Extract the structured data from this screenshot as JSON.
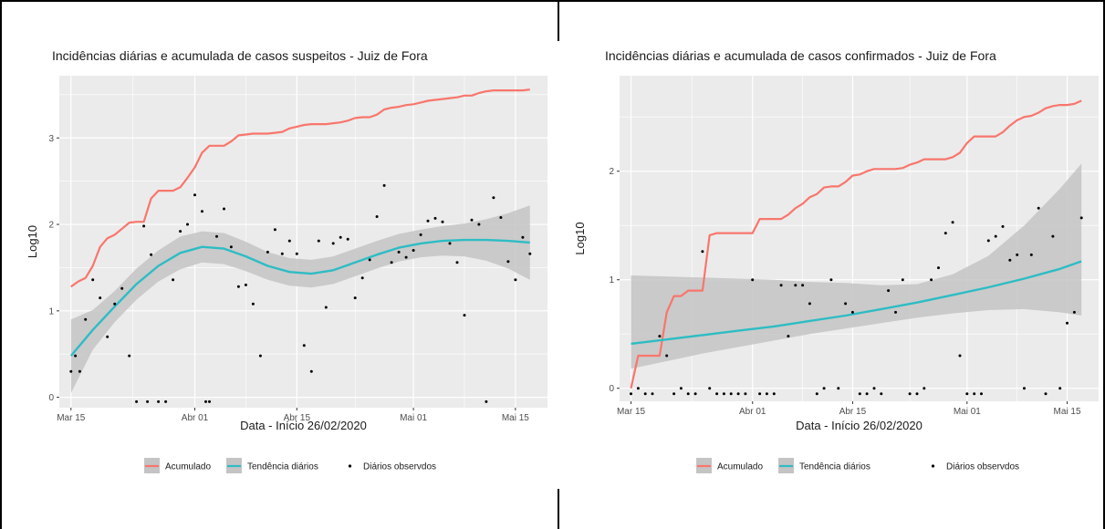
{
  "colors": {
    "panel_bg": "#ebebeb",
    "grid": "#ffffff",
    "accumulated": "#f8766d",
    "trend": "#2ebcc4",
    "ribbon": "#c4c4c4",
    "points": "#000000"
  },
  "chart_data": [
    {
      "type": "line",
      "title": "Incidências diárias e acumulada de casos suspeitos - Juiz de Fora",
      "xlabel": "Data - Início 26/02/2020",
      "ylabel": "Log10",
      "x_ticks": [
        {
          "day": 15,
          "label": "Mar 15"
        },
        {
          "day": 32,
          "label": "Abr 01"
        },
        {
          "day": 46,
          "label": "Abr 15"
        },
        {
          "day": 62,
          "label": "Mai 01"
        },
        {
          "day": 76,
          "label": "Mai 15"
        }
      ],
      "y_ticks": [
        0,
        1,
        2,
        3
      ],
      "xlim": [
        13.4,
        80.4
      ],
      "ylim": [
        -0.12,
        3.72
      ],
      "legend": [
        "Acumulado",
        "Tendência diários",
        "Diários observdos"
      ],
      "legend_position": "bottom",
      "series": [
        {
          "name": "Acumulado",
          "kind": "step",
          "x": [
            15,
            16,
            17,
            18,
            19,
            20,
            21,
            22,
            23,
            24,
            25,
            26,
            27,
            28,
            29,
            30,
            31,
            32,
            33,
            34,
            35,
            36,
            37,
            38,
            39,
            40,
            41,
            42,
            43,
            44,
            45,
            46,
            47,
            48,
            49,
            50,
            51,
            52,
            53,
            54,
            55,
            56,
            57,
            58,
            59,
            60,
            61,
            62,
            63,
            64,
            65,
            66,
            67,
            68,
            69,
            70,
            71,
            72,
            73,
            74,
            75,
            76,
            77,
            78
          ],
          "y": [
            1.28,
            1.34,
            1.38,
            1.52,
            1.74,
            1.84,
            1.88,
            1.95,
            2.02,
            2.03,
            2.03,
            2.3,
            2.39,
            2.39,
            2.39,
            2.43,
            2.54,
            2.66,
            2.83,
            2.91,
            2.91,
            2.91,
            2.96,
            3.03,
            3.04,
            3.05,
            3.05,
            3.05,
            3.06,
            3.07,
            3.11,
            3.13,
            3.15,
            3.16,
            3.16,
            3.16,
            3.17,
            3.18,
            3.2,
            3.23,
            3.24,
            3.24,
            3.27,
            3.33,
            3.35,
            3.36,
            3.38,
            3.39,
            3.41,
            3.43,
            3.44,
            3.45,
            3.46,
            3.47,
            3.49,
            3.49,
            3.52,
            3.54,
            3.55,
            3.55,
            3.55,
            3.55,
            3.55,
            3.56
          ]
        },
        {
          "name": "Tendência diários",
          "kind": "smooth",
          "x": [
            15,
            18,
            21,
            24,
            27,
            30,
            33,
            36,
            39,
            42,
            45,
            48,
            51,
            54,
            57,
            60,
            63,
            66,
            69,
            72,
            75,
            78
          ],
          "y": [
            0.48,
            0.78,
            1.05,
            1.31,
            1.52,
            1.67,
            1.74,
            1.72,
            1.63,
            1.52,
            1.45,
            1.43,
            1.47,
            1.56,
            1.65,
            1.73,
            1.78,
            1.81,
            1.82,
            1.82,
            1.81,
            1.79
          ],
          "lower": [
            0.05,
            0.55,
            0.87,
            1.13,
            1.34,
            1.48,
            1.56,
            1.54,
            1.46,
            1.36,
            1.29,
            1.27,
            1.31,
            1.4,
            1.49,
            1.57,
            1.62,
            1.64,
            1.63,
            1.58,
            1.49,
            1.36
          ],
          "upper": [
            0.9,
            1.01,
            1.23,
            1.49,
            1.7,
            1.86,
            1.92,
            1.9,
            1.8,
            1.68,
            1.61,
            1.59,
            1.63,
            1.72,
            1.81,
            1.89,
            1.94,
            1.98,
            2.01,
            2.06,
            2.13,
            2.22
          ]
        },
        {
          "name": "Diários observdos",
          "kind": "points",
          "x": [
            15,
            15.6,
            16.2,
            17,
            18,
            19,
            20,
            21,
            22,
            23,
            24,
            25,
            25.5,
            26,
            27,
            28,
            29,
            30,
            31,
            32,
            33,
            33.5,
            34,
            35,
            36,
            37,
            38,
            39,
            40,
            41,
            42,
            43,
            44,
            45,
            46,
            47,
            48,
            49,
            50,
            51,
            52,
            53,
            54,
            55,
            56,
            57,
            58,
            59,
            60,
            61,
            62,
            63,
            64,
            65,
            66,
            67,
            68,
            69,
            70,
            71,
            72,
            73,
            74,
            75,
            76,
            77,
            78
          ],
          "y": [
            0.3,
            0.48,
            0.3,
            0.9,
            1.36,
            1.15,
            0.7,
            1.08,
            1.26,
            0.48,
            -0.05,
            1.98,
            -0.05,
            1.65,
            -0.05,
            -0.05,
            1.36,
            1.92,
            2.0,
            2.34,
            2.15,
            -0.05,
            -0.05,
            1.86,
            2.18,
            1.74,
            1.28,
            1.3,
            1.08,
            0.48,
            1.68,
            1.94,
            1.66,
            1.81,
            1.66,
            0.6,
            0.3,
            1.81,
            1.04,
            1.78,
            1.85,
            1.83,
            1.15,
            1.38,
            1.59,
            2.09,
            2.45,
            1.56,
            1.68,
            1.62,
            1.7,
            1.88,
            2.04,
            2.07,
            2.03,
            1.78,
            1.56,
            0.95,
            2.05,
            2.0,
            -0.05,
            2.31,
            2.08,
            1.57,
            1.36,
            1.85,
            1.66
          ]
        }
      ]
    },
    {
      "type": "line",
      "title": "Incidências diárias e acumulada de casos confirmados - Juiz de Fora",
      "xlabel": "Data - Início 26/02/2020",
      "ylabel": "Log10",
      "x_ticks": [
        {
          "day": 15,
          "label": "Mar 15"
        },
        {
          "day": 32,
          "label": "Abr 01"
        },
        {
          "day": 46,
          "label": "Abr 15"
        },
        {
          "day": 62,
          "label": "Mai 01"
        },
        {
          "day": 76,
          "label": "Mai 15"
        }
      ],
      "y_ticks": [
        0,
        1,
        2
      ],
      "xlim": [
        13.4,
        80.4
      ],
      "ylim": [
        -0.12,
        2.88
      ],
      "legend": [
        "Acumulado",
        "Tendência diários",
        "Diários observdos"
      ],
      "legend_position": "bottom",
      "series": [
        {
          "name": "Acumulado",
          "kind": "step",
          "x": [
            15,
            16,
            17,
            18,
            19,
            20,
            21,
            22,
            23,
            24,
            25,
            26,
            27,
            28,
            29,
            30,
            31,
            32,
            33,
            34,
            35,
            36,
            37,
            38,
            39,
            40,
            41,
            42,
            43,
            44,
            45,
            46,
            47,
            48,
            49,
            50,
            51,
            52,
            53,
            54,
            55,
            56,
            57,
            58,
            59,
            60,
            61,
            62,
            63,
            64,
            65,
            66,
            67,
            68,
            69,
            70,
            71,
            72,
            73,
            74,
            75,
            76,
            77,
            78
          ],
          "y": [
            0.0,
            0.3,
            0.3,
            0.3,
            0.3,
            0.7,
            0.85,
            0.85,
            0.9,
            0.9,
            0.9,
            1.41,
            1.43,
            1.43,
            1.43,
            1.43,
            1.43,
            1.43,
            1.56,
            1.56,
            1.56,
            1.56,
            1.6,
            1.66,
            1.7,
            1.76,
            1.79,
            1.85,
            1.86,
            1.86,
            1.9,
            1.96,
            1.97,
            2.0,
            2.02,
            2.02,
            2.02,
            2.02,
            2.03,
            2.06,
            2.08,
            2.11,
            2.11,
            2.11,
            2.11,
            2.13,
            2.17,
            2.26,
            2.32,
            2.32,
            2.32,
            2.32,
            2.36,
            2.42,
            2.47,
            2.5,
            2.51,
            2.54,
            2.58,
            2.6,
            2.61,
            2.61,
            2.62,
            2.65
          ]
        },
        {
          "name": "Tendência diários",
          "kind": "smooth",
          "x": [
            15,
            20,
            25,
            30,
            35,
            40,
            45,
            50,
            55,
            60,
            65,
            70,
            75,
            78
          ],
          "y": [
            0.41,
            0.45,
            0.49,
            0.53,
            0.57,
            0.62,
            0.67,
            0.73,
            0.79,
            0.86,
            0.93,
            1.01,
            1.1,
            1.17
          ],
          "lower": [
            0.18,
            0.25,
            0.32,
            0.38,
            0.44,
            0.5,
            0.55,
            0.6,
            0.65,
            0.69,
            0.72,
            0.73,
            0.7,
            0.67
          ],
          "upper": [
            1.04,
            1.03,
            1.02,
            1.01,
            1.0,
            0.98,
            0.97,
            0.95,
            0.96,
            1.05,
            1.22,
            1.5,
            1.84,
            2.07
          ]
        },
        {
          "name": "Diários observdos",
          "kind": "points",
          "x": [
            15,
            16,
            17,
            18,
            19,
            20,
            21,
            22,
            23,
            24,
            25,
            26,
            27,
            28,
            29,
            30,
            31,
            32,
            33,
            34,
            35,
            36,
            37,
            38,
            39,
            40,
            41,
            42,
            43,
            44,
            45,
            46,
            47,
            48,
            49,
            50,
            51,
            52,
            53,
            54,
            55,
            56,
            57,
            58,
            59,
            60,
            61,
            62,
            63,
            64,
            65,
            66,
            67,
            68,
            69,
            70,
            71,
            72,
            73,
            74,
            75,
            76,
            77,
            78
          ],
          "y": [
            -0.05,
            0.0,
            -0.05,
            -0.05,
            0.48,
            0.3,
            -0.05,
            0.0,
            -0.05,
            -0.05,
            1.26,
            0.0,
            -0.05,
            -0.05,
            -0.05,
            -0.05,
            -0.05,
            1.0,
            -0.05,
            -0.05,
            -0.05,
            0.95,
            0.48,
            0.95,
            0.95,
            0.78,
            -0.05,
            0.0,
            1.0,
            0.0,
            0.78,
            0.7,
            -0.05,
            -0.05,
            0.0,
            -0.05,
            0.9,
            0.7,
            1.0,
            -0.05,
            -0.05,
            0.0,
            1.0,
            1.11,
            1.43,
            1.53,
            0.3,
            -0.05,
            -0.05,
            -0.05,
            1.36,
            1.4,
            1.49,
            1.18,
            1.23,
            0.0,
            1.23,
            1.66,
            -0.05,
            1.4,
            0.0,
            0.6,
            0.7,
            1.57
          ]
        }
      ]
    }
  ]
}
